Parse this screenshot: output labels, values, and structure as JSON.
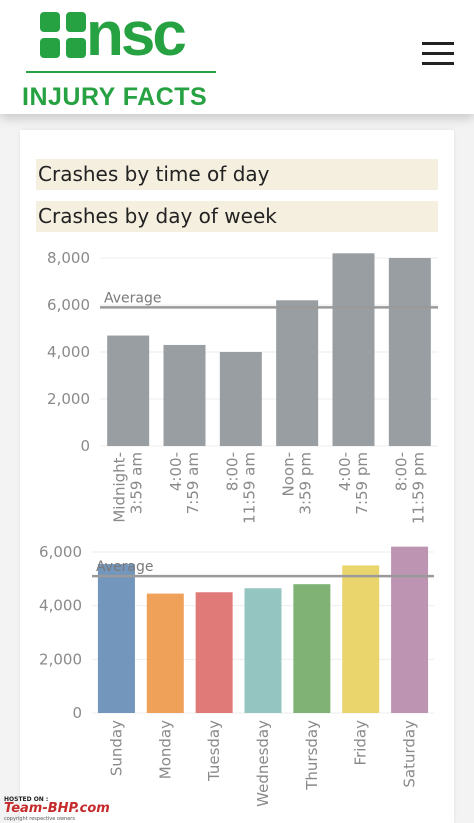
{
  "header": {
    "logo_word": "nsc",
    "logo_subtitle": "INJURY FACTS",
    "brand_color": "#27a243",
    "menu_icon": "hamburger-menu-icon"
  },
  "sections": [
    {
      "title": "Crashes by time of day"
    },
    {
      "title": "Crashes by day of week"
    }
  ],
  "chart_data": [
    {
      "type": "bar",
      "categories": [
        "Midnight-\n3:59 am",
        "4:00-\n7:59 am",
        "8:00-\n11:59 am",
        "Noon-\n3:59 pm",
        "4:00-\n7:59 pm",
        "8:00-\n11:59 pm"
      ],
      "values": [
        4700,
        4300,
        4000,
        6200,
        8200,
        8000
      ],
      "yticks": [
        "8,000",
        "6,000",
        "4,000",
        "2,000",
        "0"
      ],
      "ylim": [
        0,
        8000
      ],
      "average": 5900,
      "average_label": "Average",
      "colors": [
        "#989ea1"
      ],
      "grid": true
    },
    {
      "type": "bar",
      "categories": [
        "Sunday",
        "Monday",
        "Tuesday",
        "Wednesday",
        "Thursday",
        "Friday",
        "Saturday"
      ],
      "values": [
        5550,
        4450,
        4500,
        4650,
        4800,
        5500,
        6200
      ],
      "yticks": [
        "6,000",
        "4,000",
        "2,000",
        "0"
      ],
      "ylim": [
        0,
        6000
      ],
      "average": 5100,
      "average_label": "Average",
      "colors": [
        "#7396bd",
        "#f0a159",
        "#e07a78",
        "#94c5c0",
        "#7fb274",
        "#ead46c",
        "#bd95b3"
      ],
      "grid": true
    }
  ],
  "watermark": {
    "hosted": "HOSTED ON :",
    "brand": "Team-BHP.com",
    "copyright": "copyright respective owners"
  }
}
